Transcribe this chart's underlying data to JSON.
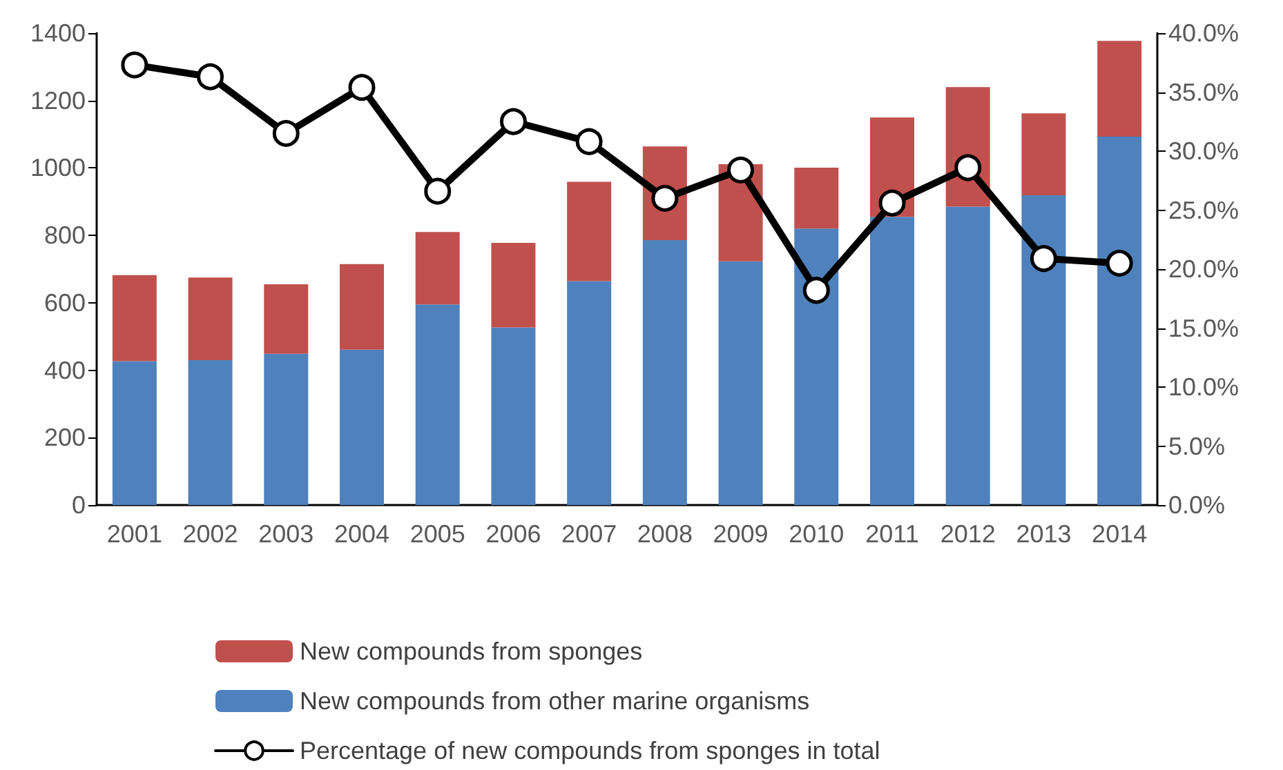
{
  "chart_data": {
    "type": "bar",
    "stacked": true,
    "categories": [
      "2001",
      "2002",
      "2003",
      "2004",
      "2005",
      "2006",
      "2007",
      "2008",
      "2009",
      "2010",
      "2011",
      "2012",
      "2013",
      "2014"
    ],
    "series": [
      {
        "name": "New compounds from other marine organisms",
        "color": "#4f81bd",
        "values": [
          427,
          430,
          449,
          461,
          595,
          527,
          664,
          786,
          723,
          820,
          855,
          885,
          919,
          1093
        ]
      },
      {
        "name": "New compounds from sponges",
        "color": "#c0504d",
        "values": [
          255,
          245,
          206,
          254,
          215,
          251,
          295,
          278,
          288,
          181,
          295,
          355,
          243,
          284
        ]
      },
      {
        "name": "Percentage of new compounds from sponges in total",
        "type": "line",
        "axis": "y2",
        "color": "#000000",
        "marker": "circle",
        "line_style": "solid",
        "values": [
          37.3,
          36.3,
          31.5,
          35.4,
          26.6,
          32.5,
          30.8,
          26.0,
          28.4,
          18.2,
          25.6,
          28.6,
          20.9,
          20.5
        ]
      }
    ],
    "ylim": [
      0,
      1400
    ],
    "yticks": [
      0,
      200,
      400,
      600,
      800,
      1000,
      1200,
      1400
    ],
    "y2lim": [
      0,
      40
    ],
    "y2ticks": [
      {
        "value": 0,
        "label": "0.0%"
      },
      {
        "value": 5,
        "label": "5.0%"
      },
      {
        "value": 10,
        "label": "10.0%"
      },
      {
        "value": 15,
        "label": "15.0%"
      },
      {
        "value": 20,
        "label": "20.0%"
      },
      {
        "value": 25,
        "label": "25.0%"
      },
      {
        "value": 30,
        "label": "30.0%"
      },
      {
        "value": 35,
        "label": "35.0%"
      },
      {
        "value": 40,
        "label": "40.0%"
      }
    ],
    "grid": false,
    "legend": "bottom"
  }
}
